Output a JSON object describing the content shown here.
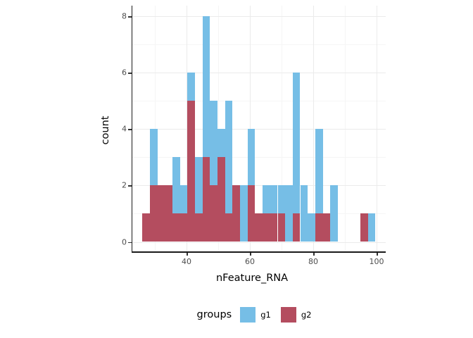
{
  "chart_data": {
    "type": "bar",
    "subtype": "stacked-histogram",
    "title": "",
    "xlabel": "nFeature_RNA",
    "ylabel": "count",
    "legend": {
      "title": "groups",
      "position": "bottom"
    },
    "x_ticks": [
      40,
      60,
      80,
      100
    ],
    "x_minor_ticks": [
      30,
      50,
      70,
      90
    ],
    "y_ticks": [
      0,
      2,
      4,
      6,
      8
    ],
    "y_minor_ticks": [
      1,
      3,
      5,
      7
    ],
    "xlim": [
      22.9,
      102.8
    ],
    "ylim": [
      0,
      8.35
    ],
    "bin_start": 26.1,
    "bin_width": 2.371,
    "series": [
      {
        "name": "g2",
        "color": "#b44d5f",
        "counts": [
          1,
          2,
          2,
          2,
          1,
          1,
          5,
          1,
          3,
          2,
          3,
          1,
          2,
          0,
          2,
          1,
          1,
          1,
          1,
          0,
          1,
          0,
          0,
          1,
          1,
          0,
          0,
          0,
          0,
          1,
          0
        ]
      },
      {
        "name": "g1",
        "color": "#76bee6",
        "counts": [
          0,
          2,
          0,
          0,
          2,
          1,
          1,
          2,
          5,
          3,
          1,
          4,
          0,
          2,
          2,
          0,
          1,
          1,
          1,
          2,
          5,
          2,
          1,
          3,
          0,
          2,
          0,
          0,
          0,
          0,
          1
        ]
      }
    ],
    "stack_order_bottom_to_top": [
      "g2",
      "g1"
    ],
    "grid": true,
    "background": "#ffffff"
  }
}
